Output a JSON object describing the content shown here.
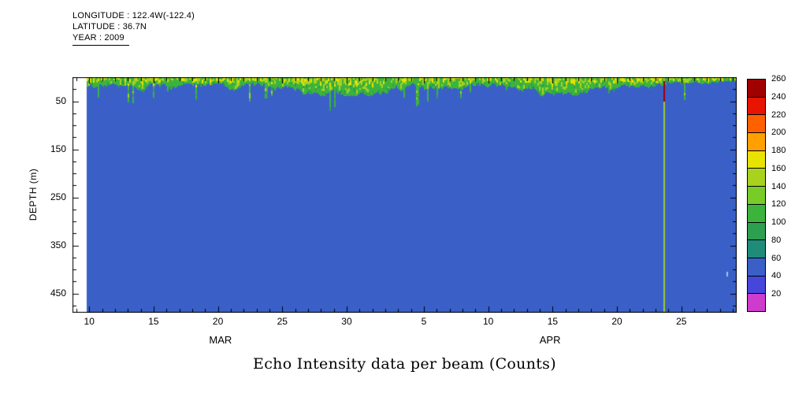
{
  "meta": {
    "longitude": "LONGITUDE : 122.4W(-122.4)",
    "latitude": "LATITUDE : 36.7N",
    "year": "YEAR : 2009"
  },
  "chart_data": {
    "type": "heatmap",
    "title": "Echo Intensity data per beam (Counts)",
    "ylabel": "DEPTH (m)",
    "x_axis": {
      "day_min": 8.7,
      "day_max": 60.3,
      "minor_step": 1,
      "major_ticks": [
        {
          "day": 10,
          "label": "10"
        },
        {
          "day": 15,
          "label": "15"
        },
        {
          "day": 20,
          "label": "20"
        },
        {
          "day": 25,
          "label": "25"
        },
        {
          "day": 30,
          "label": "30"
        },
        {
          "day": 36,
          "label": "5"
        },
        {
          "day": 41,
          "label": "10"
        },
        {
          "day": 46,
          "label": "15"
        },
        {
          "day": 51,
          "label": "20"
        },
        {
          "day": 56,
          "label": "25"
        }
      ],
      "month_labels": [
        {
          "label": "MAR",
          "day": 20.2
        },
        {
          "label": "APR",
          "day": 45.8
        }
      ]
    },
    "y_axis": {
      "min": 0,
      "max": 490,
      "unit": "m",
      "inverted": true,
      "minor_step": 25,
      "major_ticks": [
        50,
        150,
        250,
        350,
        450
      ]
    },
    "colorbar": {
      "min": 0,
      "max": 260,
      "step": 20,
      "tick_labels": [
        "260",
        "240",
        "220",
        "200",
        "180",
        "160",
        "140",
        "120",
        "100",
        "80",
        "60",
        "40",
        "20"
      ],
      "colors_low_to_high": [
        "#cd3ccd",
        "#4646dc",
        "#3a60c8",
        "#1e8c78",
        "#2e9e50",
        "#3cb43c",
        "#78cc28",
        "#a8d21e",
        "#e8e300",
        "#ffa000",
        "#ff6000",
        "#e81400",
        "#a00000"
      ]
    },
    "field": {
      "description": "Uniform ~50-count echo background (blue) with a high-scatter surface layer of 100-180 counts (green/yellow) in the upper ~20-55 m; white strip before first data ensemble",
      "background_value": 50,
      "background_color": "#3a60c8",
      "no_data_color": "#ffffff",
      "data_start_day": 9.8,
      "surface_band": {
        "depth_top_m": 0,
        "mean_thickness_m": 25,
        "max_thickness_m": 55,
        "value_range": [
          100,
          180
        ],
        "colors": [
          "#3cb43c",
          "#a8d21e",
          "#e8e300",
          "#2e9e50"
        ]
      },
      "anomaly_line": {
        "day": 54.6,
        "body_color": "#9cc832",
        "body_value": 140,
        "top_color": "#a00000",
        "top_value": 250,
        "top_from_m": 8,
        "top_to_m": 50
      },
      "speck": {
        "day": 59.5,
        "depth_m": 405,
        "color": "#9ac8e8"
      }
    }
  }
}
